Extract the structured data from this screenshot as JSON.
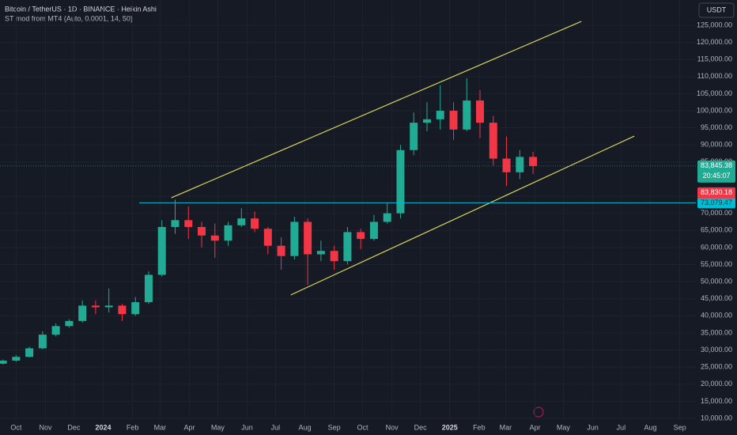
{
  "chart_data": {
    "type": "candlestick",
    "title": "Bitcoin / TetherUS · 1D · BINANCE · Heikin Ashi",
    "subtitle": "ST mod from MT4 (Auto, 0.0001, 14, 50)",
    "currency_button": "USDT",
    "up_color": "#22ab94",
    "down_color": "#f23645",
    "candles": [
      {
        "x": -14,
        "open": 26000,
        "high": 27200,
        "low": 25800,
        "close": 26900
      },
      {
        "x": 0,
        "open": 26900,
        "high": 28500,
        "low": 26600,
        "close": 28000
      },
      {
        "x": 14,
        "open": 28000,
        "high": 31000,
        "low": 27800,
        "close": 30500
      },
      {
        "x": 28,
        "open": 30500,
        "high": 35500,
        "low": 30200,
        "close": 34500
      },
      {
        "x": 42,
        "open": 34500,
        "high": 37800,
        "low": 34000,
        "close": 37000
      },
      {
        "x": 56,
        "open": 37000,
        "high": 39000,
        "low": 36500,
        "close": 38500
      },
      {
        "x": 70,
        "open": 38500,
        "high": 44500,
        "low": 38000,
        "close": 43000
      },
      {
        "x": 84,
        "open": 43000,
        "high": 44500,
        "low": 40500,
        "close": 42500
      },
      {
        "x": 98,
        "open": 42500,
        "high": 48000,
        "low": 41000,
        "close": 43000
      },
      {
        "x": 112,
        "open": 43000,
        "high": 43500,
        "low": 38500,
        "close": 40500
      },
      {
        "x": 126,
        "open": 40500,
        "high": 45500,
        "low": 40000,
        "close": 44000
      },
      {
        "x": 140,
        "open": 44000,
        "high": 53000,
        "low": 43500,
        "close": 52000
      },
      {
        "x": 154,
        "open": 52000,
        "high": 68000,
        "low": 51500,
        "close": 66000
      },
      {
        "x": 168,
        "open": 66000,
        "high": 74000,
        "low": 64000,
        "close": 68000
      },
      {
        "x": 182,
        "open": 68000,
        "high": 72000,
        "low": 62500,
        "close": 66000
      },
      {
        "x": 196,
        "open": 66000,
        "high": 67500,
        "low": 60000,
        "close": 63500
      },
      {
        "x": 210,
        "open": 63500,
        "high": 67000,
        "low": 57000,
        "close": 62000
      },
      {
        "x": 224,
        "open": 62000,
        "high": 67500,
        "low": 60500,
        "close": 66500
      },
      {
        "x": 238,
        "open": 66500,
        "high": 71500,
        "low": 66000,
        "close": 68500
      },
      {
        "x": 252,
        "open": 68500,
        "high": 70500,
        "low": 64500,
        "close": 65500
      },
      {
        "x": 266,
        "open": 65500,
        "high": 66000,
        "low": 58000,
        "close": 60500
      },
      {
        "x": 280,
        "open": 60500,
        "high": 63000,
        "low": 53500,
        "close": 57500
      },
      {
        "x": 294,
        "open": 57500,
        "high": 69000,
        "low": 56500,
        "close": 67500
      },
      {
        "x": 308,
        "open": 67500,
        "high": 68500,
        "low": 49000,
        "close": 58000
      },
      {
        "x": 322,
        "open": 58000,
        "high": 62000,
        "low": 56000,
        "close": 59000
      },
      {
        "x": 336,
        "open": 59000,
        "high": 60500,
        "low": 53500,
        "close": 56000
      },
      {
        "x": 350,
        "open": 56000,
        "high": 66000,
        "low": 55000,
        "close": 64500
      },
      {
        "x": 364,
        "open": 64500,
        "high": 65500,
        "low": 59500,
        "close": 62500
      },
      {
        "x": 378,
        "open": 62500,
        "high": 69500,
        "low": 62000,
        "close": 67500
      },
      {
        "x": 392,
        "open": 67500,
        "high": 73000,
        "low": 67000,
        "close": 70000
      },
      {
        "x": 406,
        "open": 70000,
        "high": 90000,
        "low": 68500,
        "close": 88500
      },
      {
        "x": 420,
        "open": 88500,
        "high": 99500,
        "low": 87000,
        "close": 96500
      },
      {
        "x": 434,
        "open": 96500,
        "high": 102500,
        "low": 94000,
        "close": 97500
      },
      {
        "x": 448,
        "open": 97500,
        "high": 107500,
        "low": 94500,
        "close": 100000
      },
      {
        "x": 462,
        "open": 100000,
        "high": 102500,
        "low": 91500,
        "close": 94500
      },
      {
        "x": 476,
        "open": 94500,
        "high": 109500,
        "low": 94000,
        "close": 103000
      },
      {
        "x": 490,
        "open": 103000,
        "high": 106000,
        "low": 92000,
        "close": 96500
      },
      {
        "x": 504,
        "open": 96500,
        "high": 98500,
        "low": 84000,
        "close": 86000
      },
      {
        "x": 518,
        "open": 86000,
        "high": 92500,
        "low": 78000,
        "close": 82000
      },
      {
        "x": 532,
        "open": 82000,
        "high": 88500,
        "low": 80000,
        "close": 86500
      },
      {
        "x": 546,
        "open": 86500,
        "high": 88000,
        "low": 81500,
        "close": 83845.38
      }
    ],
    "xlim": [
      -17,
      718
    ],
    "xticks": [
      {
        "value": 0,
        "label": "Oct"
      },
      {
        "value": 31,
        "label": "Nov"
      },
      {
        "value": 61,
        "label": "Dec"
      },
      {
        "value": 92,
        "label": "2024"
      },
      {
        "value": 123,
        "label": "Feb"
      },
      {
        "value": 152,
        "label": "Mar"
      },
      {
        "value": 183,
        "label": "Apr"
      },
      {
        "value": 213,
        "label": "May"
      },
      {
        "value": 244,
        "label": "Jun"
      },
      {
        "value": 274,
        "label": "Jul"
      },
      {
        "value": 305,
        "label": "Aug"
      },
      {
        "value": 336,
        "label": "Sep"
      },
      {
        "value": 366,
        "label": "Oct"
      },
      {
        "value": 397,
        "label": "Nov"
      },
      {
        "value": 427,
        "label": "Dec"
      },
      {
        "value": 458,
        "label": "2025"
      },
      {
        "value": 489,
        "label": "Feb"
      },
      {
        "value": 517,
        "label": "Mar"
      },
      {
        "value": 548,
        "label": "Apr"
      },
      {
        "value": 578,
        "label": "May"
      },
      {
        "value": 609,
        "label": "Jun"
      },
      {
        "value": 639,
        "label": "Jul"
      },
      {
        "value": 670,
        "label": "Aug"
      },
      {
        "value": 701,
        "label": "Sep"
      }
    ],
    "ylim": [
      10000,
      125000
    ],
    "yticks": [
      {
        "value": 10000,
        "label": "10,000.00"
      },
      {
        "value": 15000,
        "label": "15,000.00"
      },
      {
        "value": 20000,
        "label": "20,000.00"
      },
      {
        "value": 25000,
        "label": "25,000.00"
      },
      {
        "value": 30000,
        "label": "30,000.00"
      },
      {
        "value": 35000,
        "label": "35,000.00"
      },
      {
        "value": 40000,
        "label": "40,000.00"
      },
      {
        "value": 45000,
        "label": "45,000.00"
      },
      {
        "value": 50000,
        "label": "50,000.00"
      },
      {
        "value": 55000,
        "label": "55,000.00"
      },
      {
        "value": 60000,
        "label": "60,000.00"
      },
      {
        "value": 65000,
        "label": "65,000.00"
      },
      {
        "value": 70000,
        "label": "70,000.00"
      },
      {
        "value": 75000,
        "label": "75,000.00"
      },
      {
        "value": 85000,
        "label": "85,000.00"
      },
      {
        "value": 90000,
        "label": "90,000.00"
      },
      {
        "value": 95000,
        "label": "95,000.00"
      },
      {
        "value": 100000,
        "label": "100,000.00"
      },
      {
        "value": 105000,
        "label": "105,000.00"
      },
      {
        "value": 110000,
        "label": "110,000.00"
      },
      {
        "value": 115000,
        "label": "115,000.00"
      },
      {
        "value": 120000,
        "label": "120,000.00"
      },
      {
        "value": 125000,
        "label": "125,000.00"
      }
    ],
    "grid": true,
    "horizontal_line": {
      "value": 73079.47,
      "label": "73,079.47",
      "color": "#00bcd4",
      "start_x": 130
    },
    "trendlines": [
      {
        "color": "#d4d45a",
        "x": [
          164,
          597
        ],
        "y": [
          74550,
          126150
        ]
      },
      {
        "color": "#d4d45a",
        "x": [
          290,
          653
        ],
        "y": [
          46100,
          92600
        ]
      }
    ],
    "price_tags": [
      {
        "value": 83845.38,
        "label": "83,845.38",
        "color": "#22ab94"
      },
      {
        "value": 83830.18,
        "label": "83,830.18",
        "color": "#f23645"
      }
    ],
    "countdown": "20:45:07"
  }
}
